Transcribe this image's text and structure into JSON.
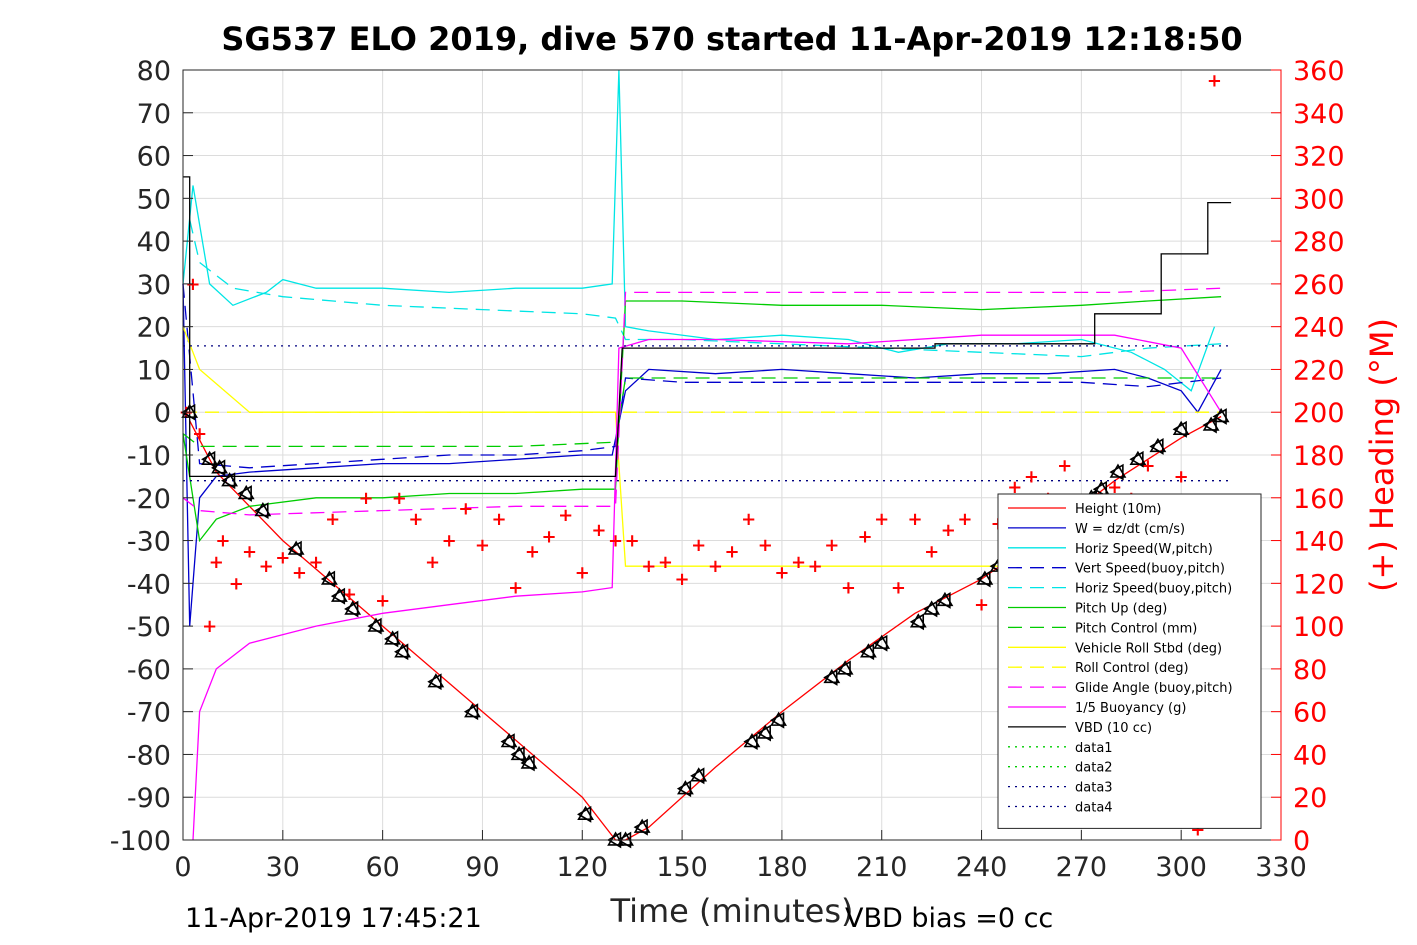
{
  "chart_data": {
    "type": "line",
    "title": "SG537 ELO 2019, dive 570 started 11-Apr-2019 12:18:50",
    "xlabel": "Time (minutes)",
    "ylabel_right": "(+) Heading (°M)",
    "footer_left": "11-Apr-2019 17:45:21",
    "footer_right": "VBD bias =0 cc",
    "xlim": [
      0,
      330
    ],
    "ylim": [
      -100,
      80
    ],
    "ylim_right": [
      0,
      360
    ],
    "xticks": [
      0,
      30,
      60,
      90,
      120,
      150,
      180,
      210,
      240,
      270,
      300,
      330
    ],
    "yticks": [
      -100,
      -90,
      -80,
      -70,
      -60,
      -50,
      -40,
      -30,
      -20,
      -10,
      0,
      10,
      20,
      30,
      40,
      50,
      60,
      70,
      80
    ],
    "yticks_right": [
      0,
      20,
      40,
      60,
      80,
      100,
      120,
      140,
      160,
      180,
      200,
      220,
      240,
      260,
      280,
      300,
      320,
      340,
      360
    ],
    "grid": true,
    "legend_position": "lower-right",
    "series": [
      {
        "name": "Height (10m)",
        "color": "#ff0000",
        "style": "solid",
        "x": [
          2,
          10,
          30,
          60,
          90,
          120,
          130,
          133,
          140,
          160,
          180,
          200,
          220,
          240,
          260,
          280,
          300,
          312
        ],
        "y": [
          -2,
          -14,
          -30,
          -50,
          -70,
          -90,
          -100,
          -100,
          -97,
          -83,
          -70,
          -58,
          -47,
          -39,
          -28,
          -16,
          -6,
          -1
        ]
      },
      {
        "name": "W = dz/dt (cm/s)",
        "color": "#0000cc",
        "style": "solid",
        "x": [
          0,
          2,
          5,
          10,
          20,
          40,
          60,
          80,
          100,
          120,
          129,
          133,
          140,
          160,
          180,
          200,
          220,
          240,
          260,
          280,
          290,
          300,
          305,
          312
        ],
        "y": [
          30,
          -50,
          -20,
          -15,
          -14,
          -13,
          -12,
          -12,
          -11,
          -10,
          -10,
          5,
          10,
          9,
          10,
          9,
          8,
          9,
          9,
          10,
          8,
          5,
          0,
          10
        ]
      },
      {
        "name": "Horiz Speed(W,pitch)",
        "color": "#00e5e5",
        "style": "solid",
        "x": [
          0,
          3,
          8,
          15,
          25,
          30,
          40,
          60,
          80,
          100,
          120,
          129,
          131,
          133,
          140,
          160,
          180,
          200,
          215,
          230,
          250,
          270,
          285,
          295,
          303,
          310
        ],
        "y": [
          30,
          53,
          30,
          25,
          28,
          31,
          29,
          29,
          28,
          29,
          29,
          30,
          80,
          20,
          19,
          17,
          18,
          17,
          14,
          16,
          16,
          17,
          14,
          10,
          5,
          20
        ]
      },
      {
        "name": "Vert Speed(buoy,pitch)",
        "color": "#0000cc",
        "style": "dashed",
        "x": [
          0,
          5,
          20,
          40,
          60,
          80,
          100,
          120,
          130,
          133,
          150,
          180,
          210,
          240,
          270,
          290,
          312
        ],
        "y": [
          30,
          -12,
          -13,
          -12,
          -11,
          -10,
          -10,
          -9,
          -8,
          8,
          7,
          7,
          7,
          7,
          7,
          6,
          8
        ]
      },
      {
        "name": "Horiz Speed(buoy,pitch)",
        "color": "#00e5e5",
        "style": "dashed",
        "x": [
          2,
          5,
          15,
          30,
          60,
          90,
          120,
          130,
          133,
          150,
          180,
          210,
          240,
          270,
          290,
          312
        ],
        "y": [
          45,
          35,
          29,
          27,
          25,
          24,
          23,
          22,
          17,
          17,
          16,
          15,
          14,
          13,
          15,
          16
        ]
      },
      {
        "name": "Pitch Up (deg)",
        "color": "#00cc00",
        "style": "solid",
        "x": [
          0,
          5,
          10,
          20,
          40,
          60,
          80,
          100,
          120,
          130,
          133,
          150,
          180,
          210,
          240,
          270,
          290,
          312
        ],
        "y": [
          -5,
          -30,
          -25,
          -22,
          -20,
          -20,
          -19,
          -19,
          -18,
          -18,
          26,
          26,
          25,
          25,
          24,
          25,
          26,
          27
        ]
      },
      {
        "name": "Pitch Control (mm)",
        "color": "#00cc00",
        "style": "dashed",
        "x": [
          0,
          5,
          20,
          60,
          100,
          130,
          133,
          180,
          230,
          260,
          290,
          312
        ],
        "y": [
          -5,
          -8,
          -8,
          -8,
          -8,
          -7,
          8,
          8,
          8,
          8,
          8,
          8
        ]
      },
      {
        "name": "Vehicle Roll Stbd (deg)",
        "color": "#ffff00",
        "style": "solid",
        "x": [
          0,
          5,
          20,
          40,
          60,
          80,
          100,
          120,
          130,
          133,
          160,
          190,
          220,
          250,
          280,
          300,
          312
        ],
        "y": [
          20,
          10,
          0,
          0,
          0,
          0,
          0,
          0,
          0,
          -36,
          -36,
          -36,
          -36,
          -36,
          -36,
          -36,
          -36
        ]
      },
      {
        "name": "Roll Control (deg)",
        "color": "#ffff00",
        "style": "dashed",
        "x": [
          0,
          130,
          133,
          312
        ],
        "y": [
          0,
          0,
          0,
          0
        ]
      },
      {
        "name": "Glide Angle (buoy,pitch)",
        "color": "#ff00ff",
        "style": "dashed",
        "x": [
          0,
          5,
          20,
          60,
          100,
          130,
          133,
          180,
          230,
          280,
          312
        ],
        "y": [
          -20,
          -23,
          -24,
          -23,
          -22,
          -22,
          28,
          28,
          28,
          28,
          29
        ]
      },
      {
        "name": "1/5 Buoyancy (g)",
        "color": "#ff00ff",
        "style": "solid",
        "x": [
          3,
          5,
          10,
          20,
          40,
          60,
          80,
          100,
          120,
          129,
          131,
          140,
          160,
          200,
          240,
          280,
          300,
          312
        ],
        "y": [
          -100,
          -70,
          -60,
          -54,
          -50,
          -47,
          -45,
          -43,
          -42,
          -41,
          15,
          17,
          17,
          16,
          18,
          18,
          15,
          0
        ]
      },
      {
        "name": "VBD (10 cc)",
        "color": "#000000",
        "style": "solid",
        "x": [
          0,
          2,
          2,
          130,
          132,
          226,
          226,
          274,
          274,
          294,
          294,
          308,
          308,
          315
        ],
        "y": [
          55,
          55,
          -15,
          -15,
          15,
          15,
          16,
          16,
          23,
          23,
          37,
          37,
          49,
          49
        ]
      },
      {
        "name": "data1",
        "color": "#00cc00",
        "style": "dotted",
        "x": [],
        "y": []
      },
      {
        "name": "data2",
        "color": "#00cc00",
        "style": "dotted",
        "x": [],
        "y": []
      },
      {
        "name": "data3",
        "color": "#000080",
        "style": "dotted",
        "x": [
          0,
          315
        ],
        "y": [
          15.5,
          15.5
        ]
      },
      {
        "name": "data4",
        "color": "#000080",
        "style": "dotted",
        "x": [
          0,
          315
        ],
        "y": [
          -16,
          -16
        ]
      }
    ],
    "heading": {
      "axis": "right",
      "color": "#ff0000",
      "x": [
        1,
        3,
        5,
        8,
        10,
        12,
        16,
        20,
        25,
        30,
        35,
        40,
        45,
        50,
        55,
        60,
        65,
        70,
        75,
        80,
        85,
        90,
        95,
        100,
        105,
        110,
        115,
        120,
        125,
        130,
        135,
        140,
        145,
        150,
        155,
        160,
        165,
        170,
        175,
        180,
        185,
        190,
        195,
        200,
        205,
        210,
        215,
        220,
        225,
        230,
        235,
        240,
        245,
        250,
        255,
        260,
        265,
        270,
        275,
        280,
        285,
        290,
        295,
        300,
        305,
        310
      ],
      "y": [
        200,
        260,
        190,
        100,
        130,
        140,
        120,
        135,
        128,
        132,
        125,
        130,
        150,
        115,
        160,
        112,
        160,
        150,
        130,
        140,
        155,
        138,
        150,
        118,
        135,
        142,
        152,
        125,
        145,
        140,
        140,
        128,
        130,
        122,
        138,
        128,
        135,
        150,
        138,
        125,
        130,
        128,
        138,
        118,
        142,
        150,
        118,
        150,
        135,
        145,
        150,
        110,
        148,
        165,
        170,
        160,
        175,
        130,
        150,
        165,
        160,
        175,
        155,
        170,
        5,
        355
      ]
    },
    "depth_markers": {
      "color": "#000000",
      "x": [
        2,
        8,
        11,
        14,
        19,
        24,
        34,
        44,
        47,
        51,
        58,
        63,
        66,
        76,
        87,
        98,
        101,
        104,
        121,
        130,
        133,
        138,
        151,
        155,
        171,
        175,
        179,
        195,
        199,
        206,
        210,
        221,
        225,
        229,
        241,
        245,
        273,
        276,
        281,
        287,
        293,
        300,
        309,
        312
      ],
      "y": [
        0,
        -11,
        -13,
        -16,
        -19,
        -23,
        -32,
        -39,
        -43,
        -46,
        -50,
        -53,
        -56,
        -63,
        -70,
        -77,
        -80,
        -82,
        -94,
        -100,
        -100,
        -97,
        -88,
        -85,
        -77,
        -75,
        -72,
        -62,
        -60,
        -56,
        -54,
        -49,
        -46,
        -44,
        -39,
        -36,
        -20,
        -18,
        -14,
        -11,
        -8,
        -4,
        -3,
        -1
      ]
    }
  }
}
